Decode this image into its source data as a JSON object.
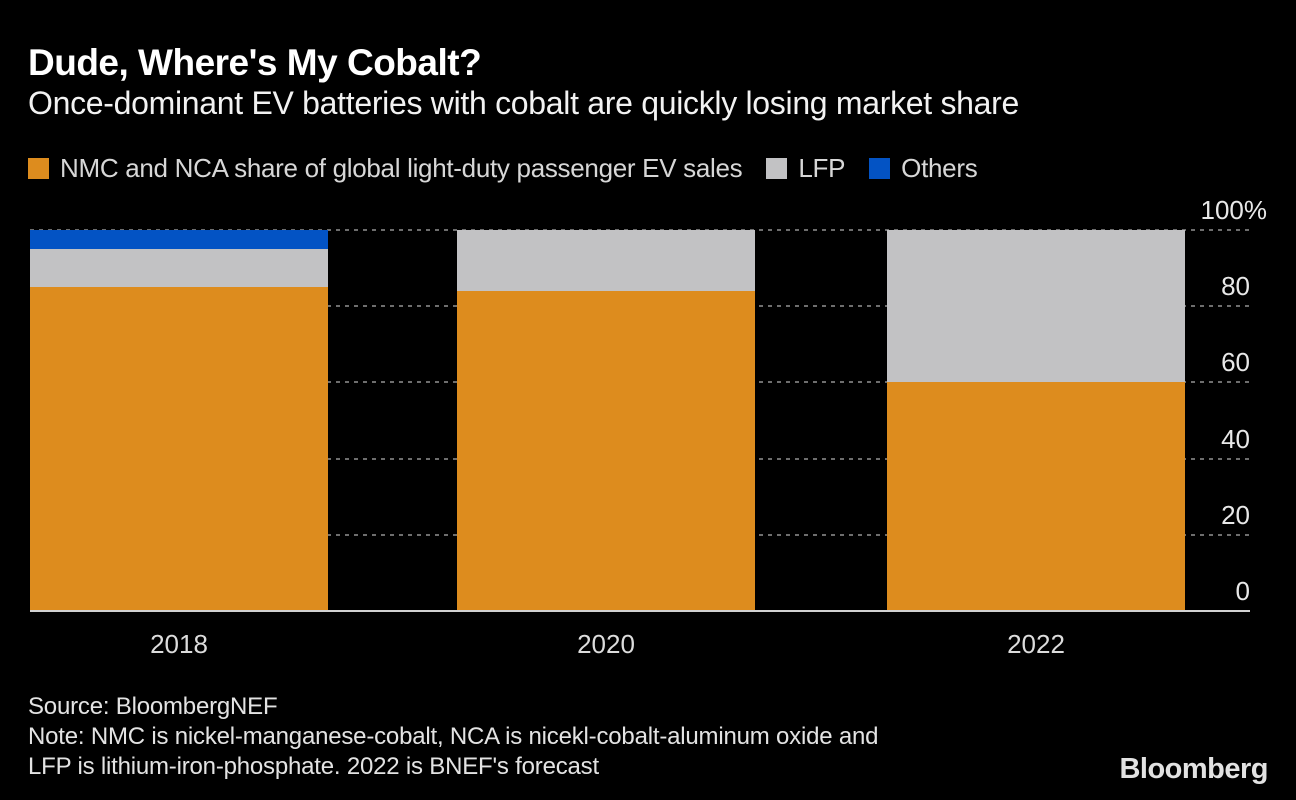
{
  "header": {
    "title": "Dude, Where's My Cobalt?",
    "subtitle": "Once-dominant EV batteries with cobalt are quickly losing market share"
  },
  "legend": [
    {
      "label": "NMC and NCA share of global light-duty passenger EV sales",
      "color": "#DD8C1E"
    },
    {
      "label": "LFP",
      "color": "#C2C2C4"
    },
    {
      "label": "Others",
      "color": "#0353C4"
    }
  ],
  "chart_data": {
    "type": "bar",
    "stacked": true,
    "categories": [
      "2018",
      "2020",
      "2022"
    ],
    "series": [
      {
        "name": "NMC and NCA share of global light-duty passenger EV sales",
        "color": "#DD8C1E",
        "values": [
          85,
          84,
          60
        ]
      },
      {
        "name": "LFP",
        "color": "#C2C2C4",
        "values": [
          10,
          16,
          40
        ]
      },
      {
        "name": "Others",
        "color": "#0353C4",
        "values": [
          5,
          0,
          0
        ]
      }
    ],
    "title": "Dude, Where's My Cobalt?",
    "xlabel": "",
    "ylabel": "",
    "ylim": [
      0,
      100
    ],
    "yticks": [
      0,
      20,
      40,
      60,
      80,
      100
    ],
    "ytick_labels": [
      "0",
      "20",
      "40",
      "60",
      "80",
      "100%"
    ],
    "grid": "horizontal-dotted",
    "legend_position": "top",
    "background": "#000000"
  },
  "footer": {
    "source": "Source: BloombergNEF",
    "note_line1": "Note: NMC is nickel-manganese-cobalt, NCA is nicekl-cobalt-aluminum oxide and",
    "note_line2": "LFP is lithium-iron-phosphate. 2022 is BNEF's forecast",
    "logo": "Bloomberg"
  }
}
